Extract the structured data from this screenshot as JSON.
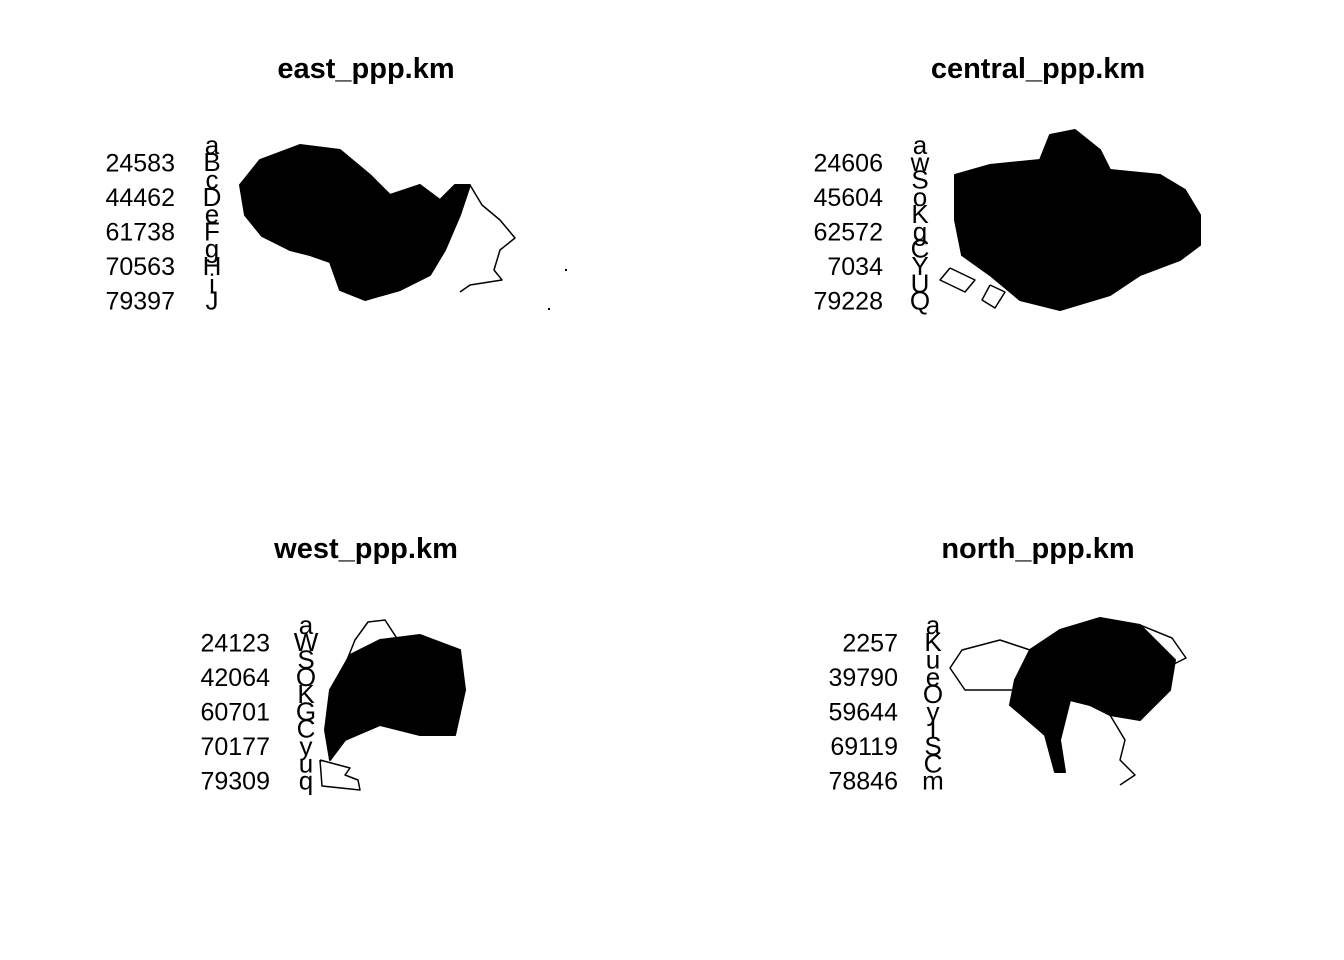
{
  "panels": [
    {
      "title": "east_ppp.km",
      "legend_values": [
        24583,
        44462,
        61738,
        70563,
        79397
      ],
      "legend_symbols": [
        "a",
        "B",
        "c",
        "D",
        "e",
        "F",
        "g",
        "H",
        "i",
        "J"
      ]
    },
    {
      "title": "central_ppp.km",
      "legend_values": [
        24606,
        45604,
        62572,
        7034,
        79228
      ],
      "legend_symbols": [
        "a",
        "w",
        "S",
        "o",
        "K",
        "g",
        "C",
        "Y",
        "U",
        "Q"
      ]
    },
    {
      "title": "west_ppp.km",
      "legend_values": [
        24123,
        42064,
        60701,
        70177,
        79309
      ],
      "legend_symbols": [
        "a",
        "W",
        "S",
        "O",
        "K",
        "G",
        "C",
        "y",
        "u",
        "q"
      ]
    },
    {
      "title": "north_ppp.km",
      "legend_values": [
        2257,
        39790,
        59644,
        69119,
        78846
      ],
      "legend_symbols": [
        "a",
        "K",
        "u",
        "e",
        "O",
        "y",
        "I",
        "S",
        "C",
        "m"
      ]
    }
  ]
}
